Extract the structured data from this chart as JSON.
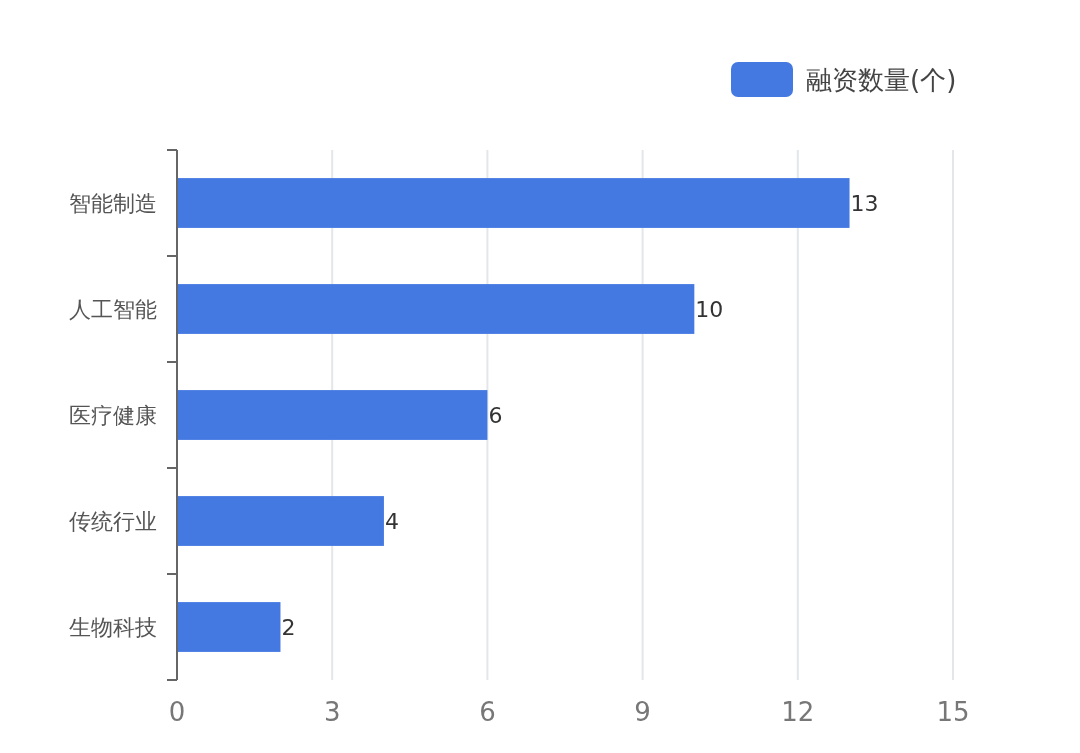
{
  "chart_data": {
    "type": "bar",
    "orientation": "horizontal",
    "categories": [
      "智能制造",
      "人工智能",
      "医疗健康",
      "传统行业",
      "生物科技"
    ],
    "series": [
      {
        "name": "融资数量(个)",
        "color": "#4479e1",
        "values": [
          13,
          10,
          6,
          4,
          2
        ]
      }
    ],
    "xlim": [
      0,
      15
    ],
    "xticks": [
      0,
      3,
      6,
      9,
      12,
      15
    ],
    "grid": "x",
    "legend": "top right",
    "data_labels": true
  }
}
